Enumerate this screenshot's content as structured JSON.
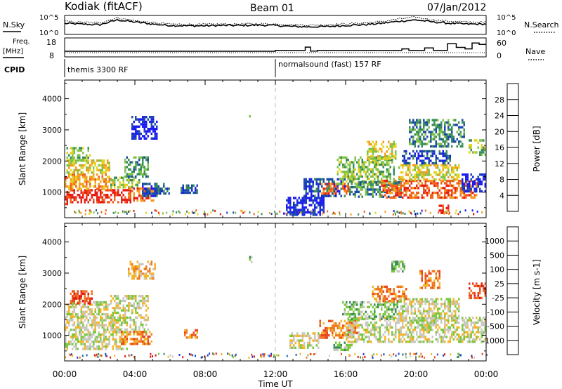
{
  "header": {
    "site": "Kodiak (fitACF)",
    "beam": "Beam 01",
    "date": "07/Jan/2012"
  },
  "noise_panel": {
    "left_label": "N.Sky",
    "right_label": "N.Search",
    "left_ticks": [
      "10^5",
      "10^0"
    ],
    "right_ticks": [
      "10^5",
      "10^0"
    ]
  },
  "freq_panel": {
    "left_label_line1": "Freq.",
    "left_label_line2": "[MHz]",
    "right_label": "Nave",
    "left_ticks": [
      "18",
      "8"
    ],
    "right_ticks": [
      "60",
      "0"
    ]
  },
  "cpid": {
    "label": "CPID",
    "modes": [
      {
        "name": "themis 3300 RF",
        "start_hour": 0
      },
      {
        "name": "normalsound (fast) 157 RF",
        "start_hour": 12
      }
    ]
  },
  "time_axis": {
    "xlabel": "Time UT",
    "tick_labels": [
      "00:00",
      "04:00",
      "08:00",
      "12:00",
      "16:00",
      "20:00",
      "00:00"
    ],
    "tick_hours": [
      0,
      4,
      8,
      12,
      16,
      20,
      24
    ]
  },
  "chart_data": [
    {
      "type": "heatmap",
      "name": "Power",
      "ylabel": "Slant Range [km]",
      "ytick_labels": [
        "1000",
        "2000",
        "3000",
        "4000"
      ],
      "yticks": [
        1000,
        2000,
        3000,
        4000
      ],
      "ylim": [
        180,
        4600
      ],
      "xlim": [
        0,
        24
      ],
      "colorbar_label": "Power [dB]",
      "colorbar_ticks": [
        "4",
        "8",
        "12",
        "16",
        "20",
        "24",
        "28"
      ],
      "colorbar_colors": [
        "#1c1cf0",
        "#1a4aa8",
        "#3a8b5a",
        "#7ec24a",
        "#e6d21e",
        "#f59a1e",
        "#f25f1a",
        "#e81e14"
      ],
      "regions": [
        {
          "t0": 0.0,
          "t1": 0.2,
          "r0": 650,
          "r1": 1500,
          "level": 7
        },
        {
          "t0": 0.2,
          "t1": 3.8,
          "r0": 650,
          "r1": 1100,
          "level": 7
        },
        {
          "t0": 0.0,
          "t1": 2.8,
          "r0": 1100,
          "r1": 1600,
          "level": 5
        },
        {
          "t0": 0.1,
          "t1": 2.6,
          "r0": 1600,
          "r1": 2050,
          "level": 4
        },
        {
          "t0": 0.1,
          "t1": 1.5,
          "r0": 2050,
          "r1": 2450,
          "level": 3
        },
        {
          "t0": 2.6,
          "t1": 4.3,
          "r0": 1150,
          "r1": 1500,
          "level": 3
        },
        {
          "t0": 3.4,
          "t1": 4.8,
          "r0": 1500,
          "r1": 2150,
          "level": 2
        },
        {
          "t0": 3.6,
          "t1": 5.1,
          "r0": 700,
          "r1": 1150,
          "level": 6
        },
        {
          "t0": 4.4,
          "t1": 6.0,
          "r0": 850,
          "r1": 1300,
          "level": 1
        },
        {
          "t0": 3.8,
          "t1": 5.3,
          "r0": 2750,
          "r1": 3450,
          "level": 0
        },
        {
          "t0": 6.6,
          "t1": 7.7,
          "r0": 950,
          "r1": 1250,
          "level": 1
        },
        {
          "t0": 10.5,
          "t1": 10.7,
          "r0": 3350,
          "r1": 3550,
          "level": 4
        },
        {
          "t0": 12.6,
          "t1": 14.8,
          "r0": 300,
          "r1": 850,
          "level": 0
        },
        {
          "t0": 13.6,
          "t1": 16.0,
          "r0": 850,
          "r1": 1450,
          "level": 1
        },
        {
          "t0": 14.6,
          "t1": 16.2,
          "r0": 950,
          "r1": 1300,
          "level": 6
        },
        {
          "t0": 15.5,
          "t1": 18.8,
          "r0": 1300,
          "r1": 2150,
          "level": 3
        },
        {
          "t0": 16.2,
          "t1": 19.2,
          "r0": 850,
          "r1": 1350,
          "level": 2
        },
        {
          "t0": 17.2,
          "t1": 18.9,
          "r0": 2050,
          "r1": 2650,
          "level": 4
        },
        {
          "t0": 18.0,
          "t1": 23.5,
          "r0": 800,
          "r1": 1400,
          "level": 6
        },
        {
          "t0": 19.0,
          "t1": 22.5,
          "r0": 1400,
          "r1": 1900,
          "level": 4
        },
        {
          "t0": 19.2,
          "t1": 22.0,
          "r0": 1900,
          "r1": 2350,
          "level": 1
        },
        {
          "t0": 21.3,
          "t1": 21.9,
          "r0": 330,
          "r1": 600,
          "level": 7
        },
        {
          "t0": 22.6,
          "t1": 24.0,
          "r0": 1000,
          "r1": 1600,
          "level": 0
        },
        {
          "t0": 23.0,
          "t1": 24.0,
          "r0": 2200,
          "r1": 2700,
          "level": 3
        },
        {
          "t0": 19.6,
          "t1": 22.8,
          "r0": 2500,
          "r1": 3350,
          "level": 2
        }
      ]
    },
    {
      "type": "heatmap",
      "name": "Velocity",
      "ylabel": "Slant Range [km]",
      "ytick_labels": [
        "1000",
        "2000",
        "3000",
        "4000"
      ],
      "yticks": [
        1000,
        2000,
        3000,
        4000
      ],
      "ylim": [
        180,
        4600
      ],
      "xlim": [
        0,
        24
      ],
      "colorbar_label": "Velocity [m s-1]",
      "colorbar_ticks": [
        "1000",
        "500",
        "100",
        "25",
        "-25",
        "-100",
        "-500",
        "-1000"
      ],
      "colorbar_colors": [
        "#1e3cd2",
        "#2860b4",
        "#3c8c5a",
        "#78c83c",
        "#c8c8c0",
        "#f5b428",
        "#f0781e",
        "#e8461e",
        "#e01414"
      ],
      "regions": [
        {
          "t0": 0.0,
          "t1": 3.6,
          "r0": 600,
          "r1": 1600,
          "level": 4
        },
        {
          "t0": 0.1,
          "t1": 2.6,
          "r0": 1600,
          "r1": 2100,
          "level": 4
        },
        {
          "t0": 2.6,
          "t1": 4.8,
          "r0": 1100,
          "r1": 2300,
          "level": 4
        },
        {
          "t0": 0.3,
          "t1": 1.6,
          "r0": 2050,
          "r1": 2450,
          "level": 7
        },
        {
          "t0": 3.2,
          "t1": 5.0,
          "r0": 700,
          "r1": 1150,
          "level": 6
        },
        {
          "t0": 3.6,
          "t1": 5.2,
          "r0": 2800,
          "r1": 3400,
          "level": 5
        },
        {
          "t0": 6.8,
          "t1": 7.6,
          "r0": 950,
          "r1": 1200,
          "level": 6
        },
        {
          "t0": 10.5,
          "t1": 10.7,
          "r0": 3350,
          "r1": 3550,
          "level": 3
        },
        {
          "t0": 12.8,
          "t1": 14.6,
          "r0": 600,
          "r1": 1100,
          "level": 4
        },
        {
          "t0": 14.5,
          "t1": 16.6,
          "r0": 900,
          "r1": 1500,
          "level": 6
        },
        {
          "t0": 16.0,
          "t1": 24.0,
          "r0": 800,
          "r1": 1600,
          "level": 4
        },
        {
          "t0": 15.8,
          "t1": 19.0,
          "r0": 1500,
          "r1": 2100,
          "level": 3
        },
        {
          "t0": 17.5,
          "t1": 19.5,
          "r0": 2100,
          "r1": 2600,
          "level": 6
        },
        {
          "t0": 19.0,
          "t1": 22.5,
          "r0": 1500,
          "r1": 2200,
          "level": 4
        },
        {
          "t0": 20.2,
          "t1": 21.4,
          "r0": 2550,
          "r1": 3100,
          "level": 6
        },
        {
          "t0": 23.0,
          "t1": 24.0,
          "r0": 2200,
          "r1": 2700,
          "level": 7
        },
        {
          "t0": 18.6,
          "t1": 19.4,
          "r0": 3050,
          "r1": 3400,
          "level": 3
        },
        {
          "t0": 15.3,
          "t1": 16.4,
          "r0": 500,
          "r1": 800,
          "level": 3
        }
      ]
    }
  ],
  "noise_sky": [
    3.2,
    3.0,
    2.8,
    4.2,
    3.6,
    3.0,
    2.6,
    2.5,
    2.5,
    2.6,
    2.6,
    2.7,
    2.6,
    2.3,
    2.2,
    2.3,
    2.6,
    2.8,
    3.2,
    3.8,
    4.2,
    3.6,
    3.2,
    3.0,
    3.0
  ],
  "noise_search": [
    3.8,
    3.5,
    3.4,
    4.8,
    4.0,
    3.4,
    3.0,
    2.9,
    2.9,
    3.0,
    3.0,
    3.1,
    3.0,
    2.8,
    2.7,
    2.8,
    3.1,
    3.3,
    3.7,
    4.5,
    5.0,
    4.2,
    3.8,
    3.6,
    3.5
  ],
  "freq_steps": [
    {
      "h": 0,
      "f": 10.4
    },
    {
      "h": 12,
      "f": 11.0
    },
    {
      "h": 13.7,
      "f": 13.2
    },
    {
      "h": 14.0,
      "f": 10.5
    },
    {
      "h": 14.4,
      "f": 11.0
    },
    {
      "h": 19.2,
      "f": 12.0
    },
    {
      "h": 19.6,
      "f": 11.0
    },
    {
      "h": 20.5,
      "f": 12.6
    },
    {
      "h": 21.0,
      "f": 11.0
    },
    {
      "h": 21.8,
      "f": 15.5
    },
    {
      "h": 22.3,
      "f": 13.0
    },
    {
      "h": 22.8,
      "f": 12.0
    },
    {
      "h": 23.2,
      "f": 16.0
    },
    {
      "h": 23.6,
      "f": 15.0
    },
    {
      "h": 24,
      "f": 15.0
    }
  ]
}
